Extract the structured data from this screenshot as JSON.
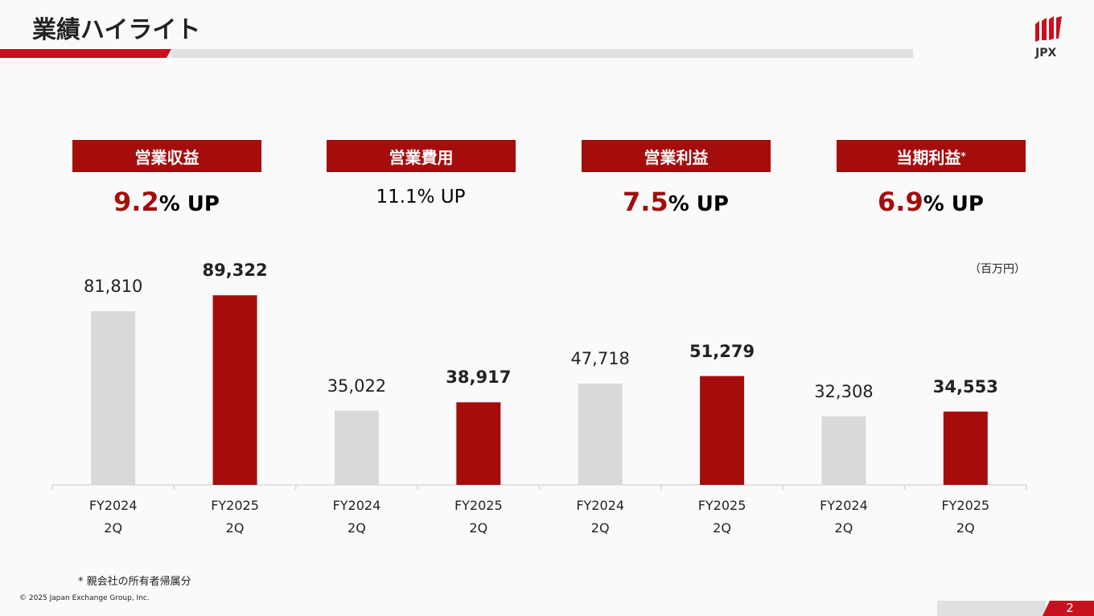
{
  "header": {
    "title": "業績ハイライト",
    "logo": "JPX"
  },
  "highlights": [
    {
      "label": "営業収益",
      "value": "9.2",
      "suffix": "% UP",
      "emphasis": true
    },
    {
      "label": "営業費用",
      "value": "11.1",
      "suffix": "% UP",
      "emphasis": false
    },
    {
      "label": "営業利益",
      "value": "7.5",
      "suffix": "% UP",
      "emphasis": true
    },
    {
      "label": "当期利益",
      "note_mark": "*",
      "value": "6.9",
      "suffix": "% UP",
      "emphasis": true
    }
  ],
  "chart_data": {
    "type": "bar",
    "unit": "（百万円）",
    "categories": [
      "FY2024 2Q",
      "FY2025 2Q",
      "FY2024 2Q",
      "FY2025 2Q",
      "FY2024 2Q",
      "FY2025 2Q",
      "FY2024 2Q",
      "FY2025 2Q"
    ],
    "values": [
      81810,
      89322,
      35022,
      38917,
      47718,
      51279,
      32308,
      34553
    ],
    "value_labels": [
      "81,810",
      "89,322",
      "35,022",
      "38,917",
      "47,718",
      "51,279",
      "32,308",
      "34,553"
    ],
    "colors": [
      "#d9d9d9",
      "#a50d0d",
      "#d9d9d9",
      "#a50d0d",
      "#d9d9d9",
      "#a50d0d",
      "#d9d9d9",
      "#a50d0d"
    ],
    "ylim": [
      0,
      100000
    ]
  },
  "footnote": "*  親会社の所有者帰属分",
  "copyright": "© 2025 Japan Exchange Group, Inc.",
  "page_number": "2"
}
